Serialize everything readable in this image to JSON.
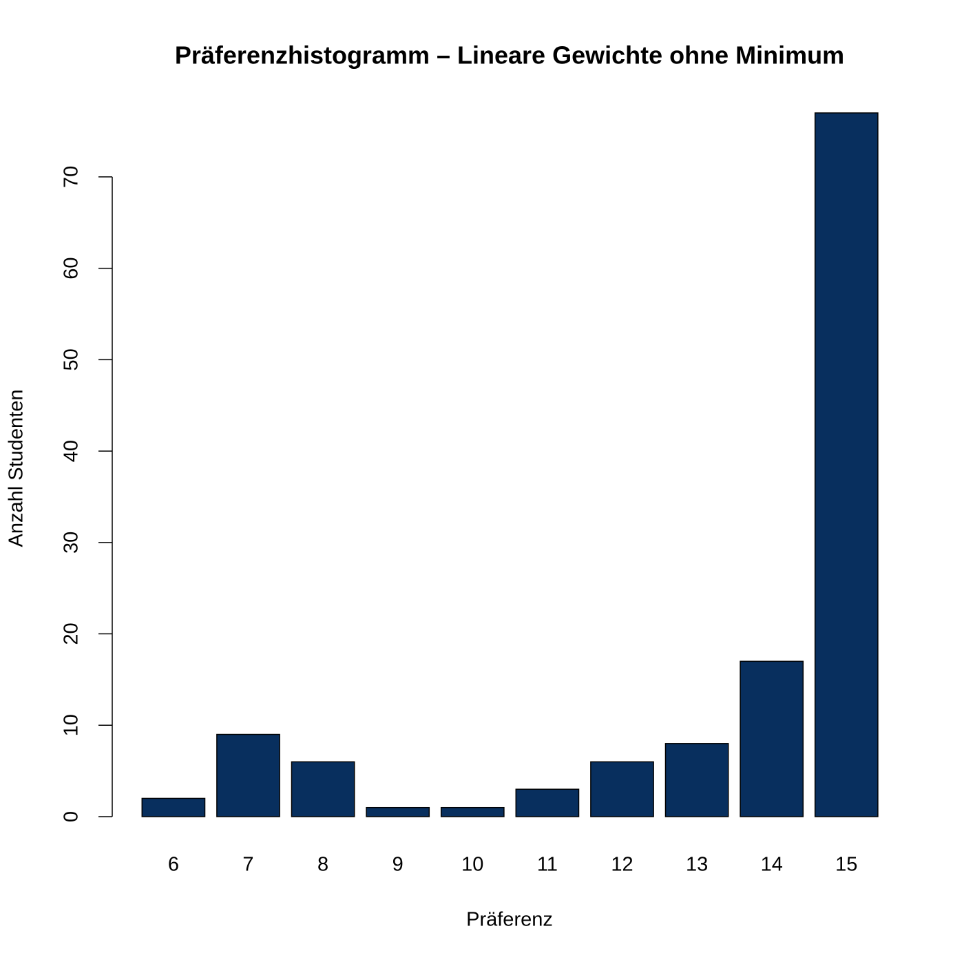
{
  "chart_data": {
    "type": "bar",
    "title": "Präferenzhistogramm – Lineare Gewichte ohne Minimum",
    "x_label": "Präferenz",
    "y_label": "Anzahl Studenten",
    "categories": [
      "6",
      "7",
      "8",
      "9",
      "10",
      "11",
      "12",
      "13",
      "14",
      "15"
    ],
    "values": [
      2,
      9,
      6,
      1,
      1,
      3,
      6,
      8,
      17,
      77
    ],
    "color": "#082f5e",
    "ylim": [
      0,
      77
    ],
    "yticks": [
      0,
      10,
      20,
      30,
      40,
      50,
      60,
      70
    ],
    "grid": false
  }
}
